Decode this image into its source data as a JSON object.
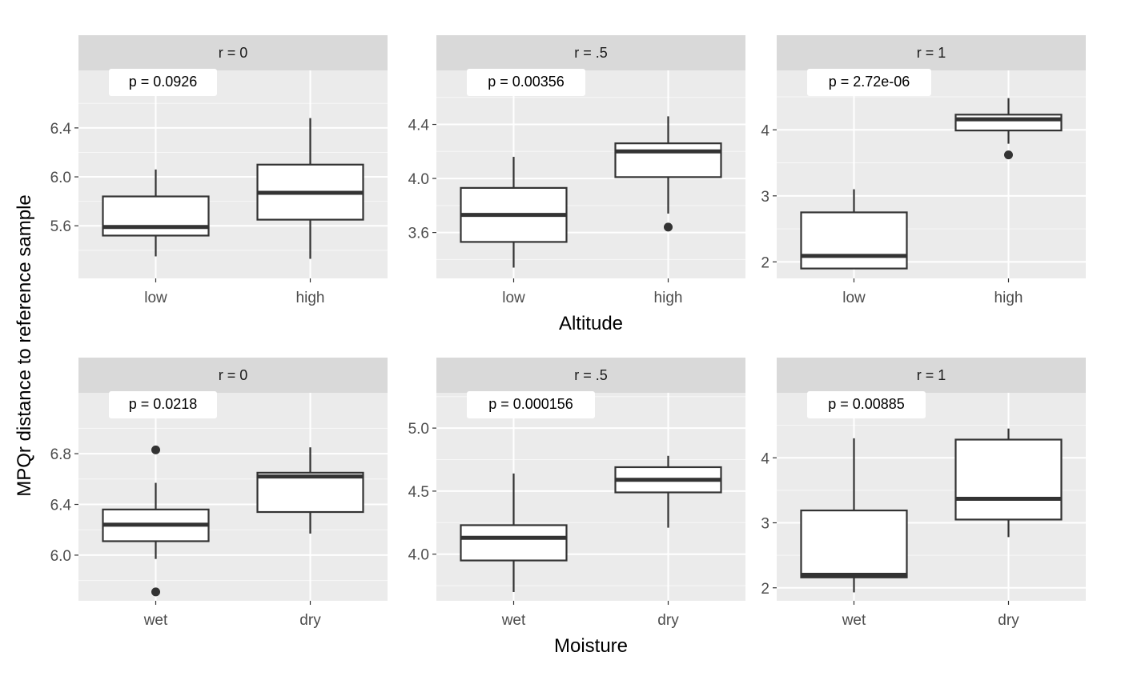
{
  "y_axis_title": "MPQr distance to reference sample",
  "colors": {
    "panel_bg": "#ebebeb",
    "strip_bg": "#d9d9d9",
    "grid_major": "#ffffff",
    "box_fill": "#ffffff",
    "box_line": "#333333",
    "outlier": "#333333"
  },
  "chart_data": [
    {
      "type": "box",
      "strip": "r = 0",
      "xlabel": "",
      "categories": [
        "low",
        "high"
      ],
      "yticks": [
        5.6,
        6.0,
        6.4
      ],
      "yticks_text": [
        "5.6",
        "6.0",
        "6.4"
      ],
      "ylim": [
        5.17,
        6.87
      ],
      "pvalue": "p = 0.0926",
      "boxes": [
        {
          "category": "low",
          "min": 5.35,
          "q1": 5.52,
          "median": 5.59,
          "q3": 5.84,
          "max": 6.06,
          "outliers": []
        },
        {
          "category": "high",
          "min": 5.33,
          "q1": 5.65,
          "median": 5.87,
          "q3": 6.1,
          "max": 6.48,
          "outliers": []
        }
      ]
    },
    {
      "type": "box",
      "strip": "r = .5",
      "xlabel": "Altitude",
      "categories": [
        "low",
        "high"
      ],
      "yticks": [
        3.6,
        4.0,
        4.4
      ],
      "yticks_text": [
        "3.6",
        "4.0",
        "4.4"
      ],
      "ylim": [
        3.26,
        4.8
      ],
      "pvalue": "p = 0.00356",
      "boxes": [
        {
          "category": "low",
          "min": 3.34,
          "q1": 3.53,
          "median": 3.73,
          "q3": 3.93,
          "max": 4.16,
          "outliers": []
        },
        {
          "category": "high",
          "min": 3.74,
          "q1": 4.01,
          "median": 4.2,
          "q3": 4.26,
          "max": 4.46,
          "outliers": [
            3.64
          ]
        }
      ]
    },
    {
      "type": "box",
      "strip": "r = 1",
      "xlabel": "",
      "categories": [
        "low",
        "high"
      ],
      "yticks": [
        2,
        3,
        4
      ],
      "yticks_text": [
        "2",
        "3",
        "4"
      ],
      "ylim": [
        1.75,
        4.9
      ],
      "pvalue": "p = 2.72e-06",
      "boxes": [
        {
          "category": "low",
          "min": 1.9,
          "q1": 1.9,
          "median": 2.09,
          "q3": 2.75,
          "max": 3.1,
          "outliers": []
        },
        {
          "category": "high",
          "min": 3.79,
          "q1": 3.99,
          "median": 4.16,
          "q3": 4.23,
          "max": 4.48,
          "outliers": [
            3.62
          ]
        }
      ]
    },
    {
      "type": "box",
      "strip": "r = 0",
      "xlabel": "",
      "categories": [
        "wet",
        "dry"
      ],
      "yticks": [
        6.0,
        6.4,
        6.8
      ],
      "yticks_text": [
        "6.0",
        "6.4",
        "6.8"
      ],
      "ylim": [
        5.64,
        7.28
      ],
      "pvalue": "p = 0.0218",
      "boxes": [
        {
          "category": "wet",
          "min": 5.97,
          "q1": 6.11,
          "median": 6.24,
          "q3": 6.36,
          "max": 6.57,
          "outliers": [
            6.83,
            5.71
          ]
        },
        {
          "category": "dry",
          "min": 6.17,
          "q1": 6.34,
          "median": 6.62,
          "q3": 6.65,
          "max": 6.85,
          "outliers": []
        }
      ]
    },
    {
      "type": "box",
      "strip": "r = .5",
      "xlabel": "Moisture",
      "categories": [
        "wet",
        "dry"
      ],
      "yticks": [
        4.0,
        4.5,
        5.0
      ],
      "yticks_text": [
        "4.0",
        "4.5",
        "5.0"
      ],
      "ylim": [
        3.63,
        5.28
      ],
      "pvalue": "p = 0.000156",
      "boxes": [
        {
          "category": "wet",
          "min": 3.7,
          "q1": 3.95,
          "median": 4.13,
          "q3": 4.23,
          "max": 4.64,
          "outliers": []
        },
        {
          "category": "dry",
          "min": 4.21,
          "q1": 4.49,
          "median": 4.59,
          "q3": 4.69,
          "max": 4.78,
          "outliers": []
        }
      ]
    },
    {
      "type": "box",
      "strip": "r = 1",
      "xlabel": "",
      "categories": [
        "wet",
        "dry"
      ],
      "yticks": [
        2,
        3,
        4
      ],
      "yticks_text": [
        "2",
        "3",
        "4"
      ],
      "ylim": [
        1.8,
        5.0
      ],
      "pvalue": "p = 0.00885",
      "boxes": [
        {
          "category": "wet",
          "min": 1.93,
          "q1": 2.16,
          "median": 2.2,
          "q3": 3.19,
          "max": 4.3,
          "outliers": []
        },
        {
          "category": "dry",
          "min": 2.78,
          "q1": 3.05,
          "median": 3.37,
          "q3": 4.28,
          "max": 4.45,
          "outliers": []
        }
      ]
    }
  ]
}
